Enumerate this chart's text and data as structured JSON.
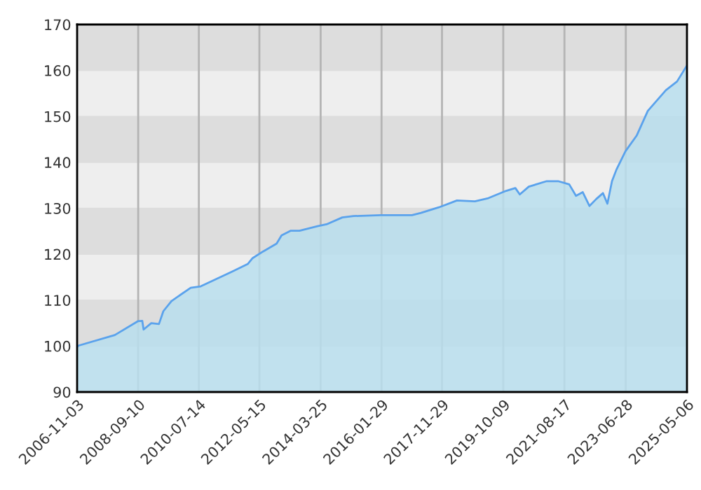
{
  "chart_data": {
    "type": "area",
    "color": "#5aa2ec",
    "grid": true,
    "x": [
      "2006-11-03",
      "2006-11-18",
      "2007-12-26",
      "2008-09-05",
      "2008-10-25",
      "2008-11-09",
      "2009-02-02",
      "2009-04-28",
      "2009-06-16",
      "2009-09-14",
      "2010-04-15",
      "2010-08-04",
      "2011-07-18",
      "2012-01-09",
      "2012-02-27",
      "2012-06-26",
      "2012-11-22",
      "2013-01-16",
      "2013-04-25",
      "2013-08-03",
      "2014-02-18",
      "2014-05-29",
      "2014-11-20",
      "2015-03-24",
      "2016-01-18",
      "2016-12-31",
      "2017-04-10",
      "2017-10-25",
      "2018-05-14",
      "2018-11-28",
      "2019-04-27",
      "2019-11-11",
      "2020-02-20",
      "2020-04-09",
      "2020-07-18",
      "2021-02-02",
      "2021-06-07",
      "2021-10-09",
      "2021-12-23",
      "2022-03-08",
      "2022-05-21",
      "2022-08-04",
      "2022-10-18",
      "2022-12-06",
      "2023-01-26",
      "2023-03-16",
      "2023-06-24",
      "2023-10-26",
      "2024-02-27",
      "2024-09-14",
      "2025-01-16",
      "2025-05-06"
    ],
    "values": [
      99.8,
      100.1,
      102.4,
      105.4,
      105.5,
      103.6,
      105.0,
      104.8,
      107.6,
      109.8,
      112.7,
      113.0,
      116.2,
      117.9,
      119.1,
      120.6,
      122.3,
      124.1,
      125.1,
      125.1,
      126.1,
      126.5,
      128.0,
      128.3,
      128.5,
      128.5,
      129.0,
      130.2,
      131.7,
      131.5,
      132.2,
      133.8,
      134.4,
      133.0,
      134.7,
      135.9,
      135.9,
      135.2,
      132.7,
      133.5,
      130.5,
      132.0,
      133.3,
      131.0,
      135.9,
      138.4,
      142.4,
      145.8,
      151.2,
      155.7,
      157.6,
      161.1
    ],
    "xlim": [
      "2006-11-03",
      "2025-05-06"
    ],
    "xticks": [
      {
        "value": "2006-11-03",
        "label": "2006-11-03"
      },
      {
        "value": "2008-09-10",
        "label": "2008-09-10"
      },
      {
        "value": "2010-07-14",
        "label": "2010-07-14"
      },
      {
        "value": "2012-05-15",
        "label": "2012-05-15"
      },
      {
        "value": "2014-03-25",
        "label": "2014-03-25"
      },
      {
        "value": "2016-01-29",
        "label": "2016-01-29"
      },
      {
        "value": "2017-11-29",
        "label": "2017-11-29"
      },
      {
        "value": "2019-10-09",
        "label": "2019-10-09"
      },
      {
        "value": "2021-08-17",
        "label": "2021-08-17"
      },
      {
        "value": "2023-06-28",
        "label": "2023-06-28"
      },
      {
        "value": "2025-05-06",
        "label": "2025-05-06"
      }
    ],
    "bands": [
      {
        "axis": "y",
        "from": 100,
        "to": 110,
        "color": "#dddddd"
      },
      {
        "axis": "y",
        "from": 120,
        "to": 130,
        "color": "#dddddd"
      },
      {
        "axis": "y",
        "from": 140,
        "to": 150,
        "color": "#dddddd"
      },
      {
        "axis": "y",
        "from": 160,
        "to": 170,
        "color": "#dddddd"
      }
    ],
    "ylim": [
      90,
      170
    ],
    "yticks": [
      90,
      100,
      110,
      120,
      130,
      140,
      150,
      160,
      170
    ]
  }
}
